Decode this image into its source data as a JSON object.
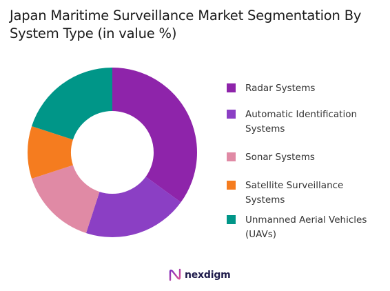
{
  "chart_data": {
    "type": "pie",
    "title": "Japan Maritime Surveillance Market Segmentation By System Type (in value %)",
    "categories": [
      "Radar Systems",
      "Automatic Identification Systems",
      "Sonar Systems",
      "Satellite Surveillance Systems",
      "Unmanned Aerial Vehicles (UAVs)"
    ],
    "values": [
      35,
      20,
      15,
      10,
      20
    ],
    "colors": [
      "#8e24aa",
      "#8b3fc4",
      "#e08aa5",
      "#f57c1f",
      "#009688"
    ],
    "donut": true,
    "legend_position": "right"
  },
  "logo": {
    "text": "nexdigm",
    "icon": "nexdigm-logo-icon"
  }
}
